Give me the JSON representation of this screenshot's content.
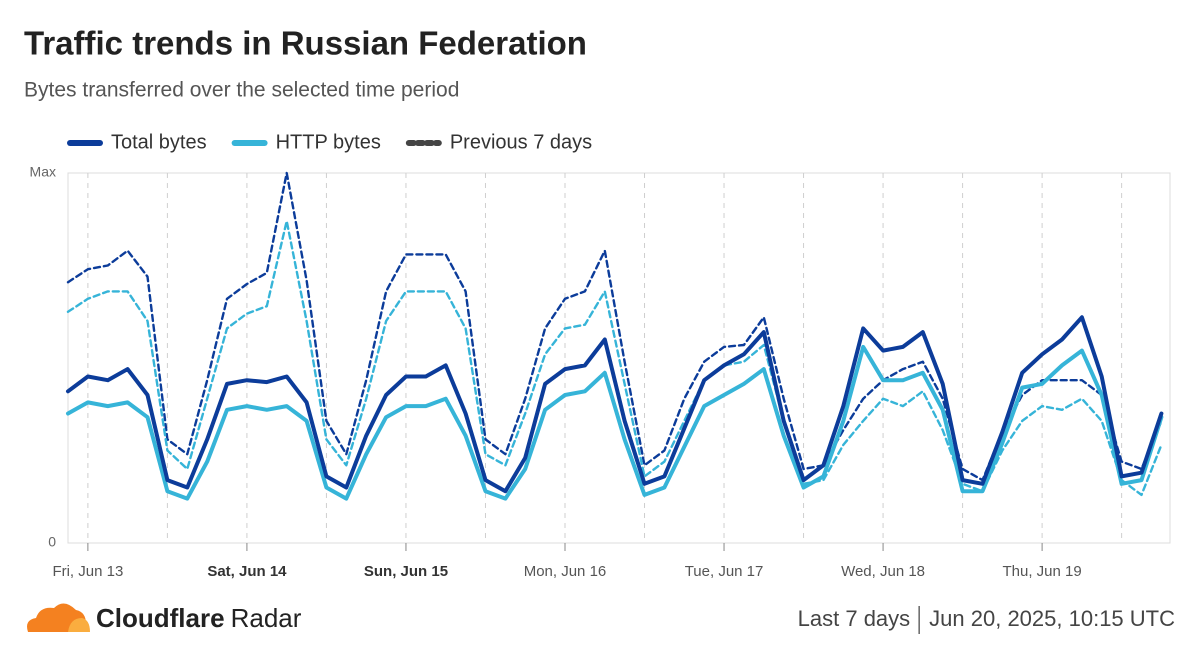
{
  "chart_data": {
    "type": "line",
    "title": "Traffic trends in Russian Federation",
    "subtitle": "Bytes transferred over the selected time period",
    "x": [
      -3,
      0,
      3,
      6,
      9,
      12,
      15,
      18,
      21,
      24,
      27,
      30,
      33,
      36,
      39,
      42,
      45,
      48,
      51,
      54,
      57,
      60,
      63,
      66,
      69,
      72,
      75,
      78,
      81,
      84,
      87,
      90,
      93,
      96,
      99,
      102,
      105,
      108,
      111,
      114,
      117,
      120,
      123,
      126,
      129,
      132,
      135,
      138,
      141,
      144,
      147,
      150,
      153,
      156,
      159,
      162
    ],
    "xlim": [
      -3,
      163.3
    ],
    "xticks": [
      {
        "value": 0,
        "label": "Fri, Jun 13"
      },
      {
        "value": 24,
        "label": "Sat, Jun 14",
        "bold": true
      },
      {
        "value": 48,
        "label": "Sun, Jun 15",
        "bold": true
      },
      {
        "value": 72,
        "label": "Mon, Jun 16"
      },
      {
        "value": 96,
        "label": "Tue, Jun 17"
      },
      {
        "value": 120,
        "label": "Wed, Jun 18"
      },
      {
        "value": 144,
        "label": "Thu, Jun 19"
      }
    ],
    "xgrid_lines": [
      0,
      12,
      24,
      36,
      48,
      60,
      72,
      84,
      96,
      108,
      120,
      132,
      144,
      156
    ],
    "ylim": [
      0,
      100
    ],
    "yticks": [
      0,
      {
        "value": 100,
        "label": "Max"
      }
    ],
    "series": [
      {
        "name": "Previous 7 days",
        "color": "#0c3c9a",
        "legend_color": "#444444",
        "dashed": true,
        "values": [
          70.5,
          74,
          75,
          79,
          72,
          28,
          24,
          44,
          66,
          70,
          73,
          100,
          71,
          33,
          24,
          44,
          68,
          78,
          78,
          78,
          68,
          28,
          24,
          39,
          58,
          66,
          68,
          79,
          49,
          21,
          25,
          39,
          49,
          53,
          53.5,
          61,
          39,
          20,
          21,
          30.5,
          39,
          44,
          47,
          49,
          39,
          20,
          17,
          30,
          40,
          44,
          44,
          44,
          40,
          22,
          20,
          33
        ]
      },
      {
        "color": "#36b4d8",
        "dashed": true,
        "values": [
          62.5,
          66,
          68,
          68,
          60,
          25,
          20,
          39,
          58,
          62,
          64,
          87,
          60,
          28,
          21,
          39,
          60,
          68,
          68,
          68,
          58,
          24,
          21,
          35,
          51,
          58,
          59,
          68,
          43,
          18,
          22,
          33,
          44,
          48,
          49,
          53.5,
          33,
          16,
          17,
          26.5,
          33,
          39,
          37,
          41,
          30.5,
          16,
          14,
          25,
          33,
          37,
          36,
          39,
          33,
          17,
          13,
          26.5
        ]
      },
      {
        "name": "HTTP bytes",
        "color": "#36b4d8",
        "values": [
          35,
          38,
          37,
          38,
          34,
          14,
          12,
          22,
          36,
          37,
          36,
          37,
          33,
          15,
          12,
          24,
          34,
          37,
          37,
          39,
          29,
          14,
          12,
          20,
          36,
          40,
          41,
          46,
          28,
          13,
          15,
          26,
          37,
          40,
          43,
          47,
          29,
          15,
          18,
          33,
          53,
          44,
          44,
          46,
          36,
          14,
          14,
          27,
          42,
          43,
          48,
          52,
          40,
          16,
          17,
          34
        ]
      },
      {
        "name": "Total bytes",
        "color": "#0c3c9a",
        "values": [
          41,
          45,
          44,
          47,
          40,
          17,
          15,
          28,
          43,
          44,
          43.5,
          45,
          38,
          18,
          15,
          29,
          40,
          45,
          45,
          48,
          35,
          17,
          14,
          23,
          43,
          47,
          48,
          55,
          33,
          16,
          18,
          31,
          44,
          48,
          51,
          57,
          33,
          17,
          21,
          37,
          58,
          52,
          53,
          57,
          43,
          17,
          16,
          30,
          46,
          51,
          55,
          61,
          45,
          18,
          19,
          35
        ]
      }
    ],
    "legend_order": [
      3,
      2,
      0
    ]
  },
  "footer": {
    "brand": "Cloudflare",
    "product": "Radar",
    "range": "Last 7 days",
    "timestamp": "Jun 20, 2025, 10:15 UTC"
  }
}
